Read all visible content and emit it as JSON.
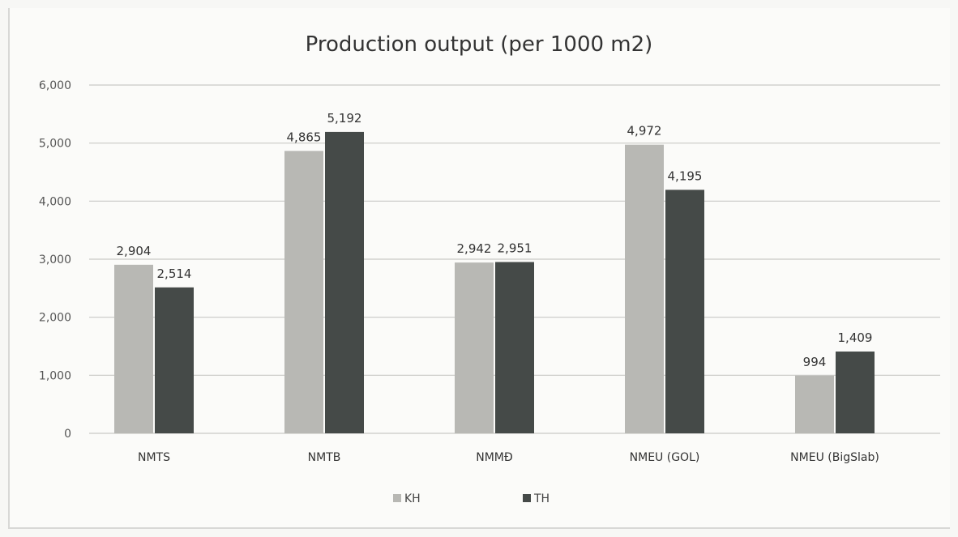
{
  "chart_data": {
    "type": "bar",
    "title": "Production output (per 1000 m2)",
    "xlabel": "",
    "ylabel": "",
    "ylim": [
      0,
      6000
    ],
    "yticks": [
      0,
      1000,
      2000,
      3000,
      4000,
      5000,
      6000
    ],
    "ytick_labels": [
      "0",
      "1,000",
      "2,000",
      "3,000",
      "4,000",
      "5,000",
      "6,000"
    ],
    "grid": true,
    "legend_position": "bottom",
    "categories": [
      "NMTS",
      "NMTB",
      "NMMĐ",
      "NMEU (GOL)",
      "NMEU (BigSlab)"
    ],
    "series": [
      {
        "name": "KH",
        "color": "#b8b8b4",
        "values": [
          2904,
          4865,
          2942,
          4972,
          994
        ],
        "labels": [
          "2,904",
          "4,865",
          "2,942",
          "4,972",
          "994"
        ]
      },
      {
        "name": "TH",
        "color": "#454a48",
        "values": [
          2514,
          5192,
          2951,
          4195,
          1409
        ],
        "labels": [
          "2,514",
          "5,192",
          "2,951",
          "4,195",
          "1,409"
        ]
      }
    ]
  }
}
